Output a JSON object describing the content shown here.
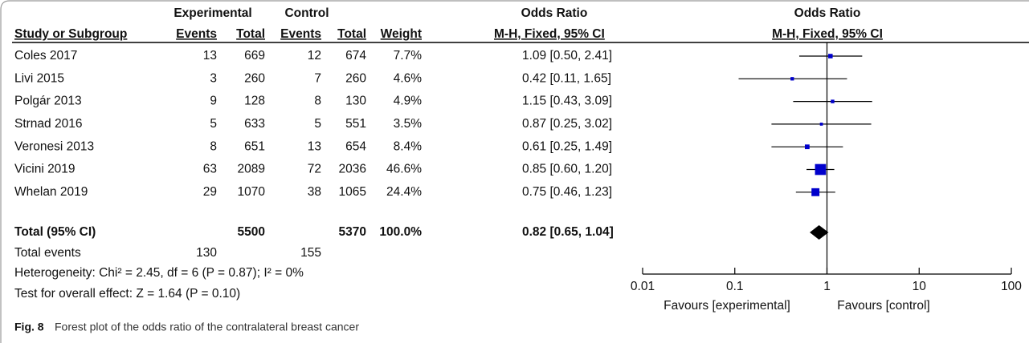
{
  "table": {
    "group_headers": [
      "Experimental",
      "Control",
      "Odds Ratio"
    ],
    "columns": [
      "Study or Subgroup",
      "Events",
      "Total",
      "Events",
      "Total",
      "Weight",
      "M-H, Fixed, 95% CI"
    ],
    "rows": [
      [
        "Coles 2017",
        "13",
        "669",
        "12",
        "674",
        "7.7%",
        "1.09 [0.50, 2.41]"
      ],
      [
        "Livi 2015",
        "3",
        "260",
        "7",
        "260",
        "4.6%",
        "0.42 [0.11, 1.65]"
      ],
      [
        "Polgár 2013",
        "9",
        "128",
        "8",
        "130",
        "4.9%",
        "1.15 [0.43, 3.09]"
      ],
      [
        "Strnad 2016",
        "5",
        "633",
        "5",
        "551",
        "3.5%",
        "0.87 [0.25, 3.02]"
      ],
      [
        "Veronesi 2013",
        "8",
        "651",
        "13",
        "654",
        "8.4%",
        "0.61 [0.25, 1.49]"
      ],
      [
        "Vicini 2019",
        "63",
        "2089",
        "72",
        "2036",
        "46.6%",
        "0.85 [0.60, 1.20]"
      ],
      [
        "Whelan 2019",
        "29",
        "1070",
        "38",
        "1065",
        "24.4%",
        "0.75 [0.46, 1.23]"
      ]
    ],
    "total": {
      "label": "Total (95% CI)",
      "experimental_total": "5500",
      "control_total": "5370",
      "weight": "100.0%",
      "ci": "0.82 [0.65, 1.04]"
    },
    "total_events": {
      "label": "Total events",
      "experimental": "130",
      "control": "155"
    },
    "heterogeneity": "Heterogeneity: Chi² = 2.45, df = 6 (P = 0.87); I² = 0%",
    "overall_effect": "Test for overall effect: Z = 1.64 (P = 0.10)"
  },
  "chart_data": {
    "type": "forest",
    "title": "Odds Ratio",
    "subtitle": "M-H, Fixed, 95% CI",
    "log_scale": true,
    "xlim": [
      0.01,
      100
    ],
    "xticks": [
      0.01,
      0.1,
      1,
      10,
      100
    ],
    "reference_line": 1,
    "color": "#0000cc",
    "values": [
      1.09,
      0.42,
      1.15,
      0.87,
      0.61,
      0.85,
      0.75
    ],
    "lower": [
      0.5,
      0.11,
      0.43,
      0.25,
      0.25,
      0.6,
      0.46
    ],
    "upper": [
      2.41,
      1.65,
      3.09,
      3.02,
      1.49,
      1.2,
      1.23
    ],
    "weights": [
      7.7,
      4.6,
      4.9,
      3.5,
      8.4,
      46.6,
      24.4
    ],
    "total": {
      "value": 0.82,
      "lower": 0.65,
      "upper": 1.04
    },
    "xlabel_left": "Favours [experimental]",
    "xlabel_right": "Favours [control]"
  },
  "caption": {
    "label": "Fig. 8",
    "text": "Forest plot of the odds ratio of the contralateral breast cancer"
  }
}
